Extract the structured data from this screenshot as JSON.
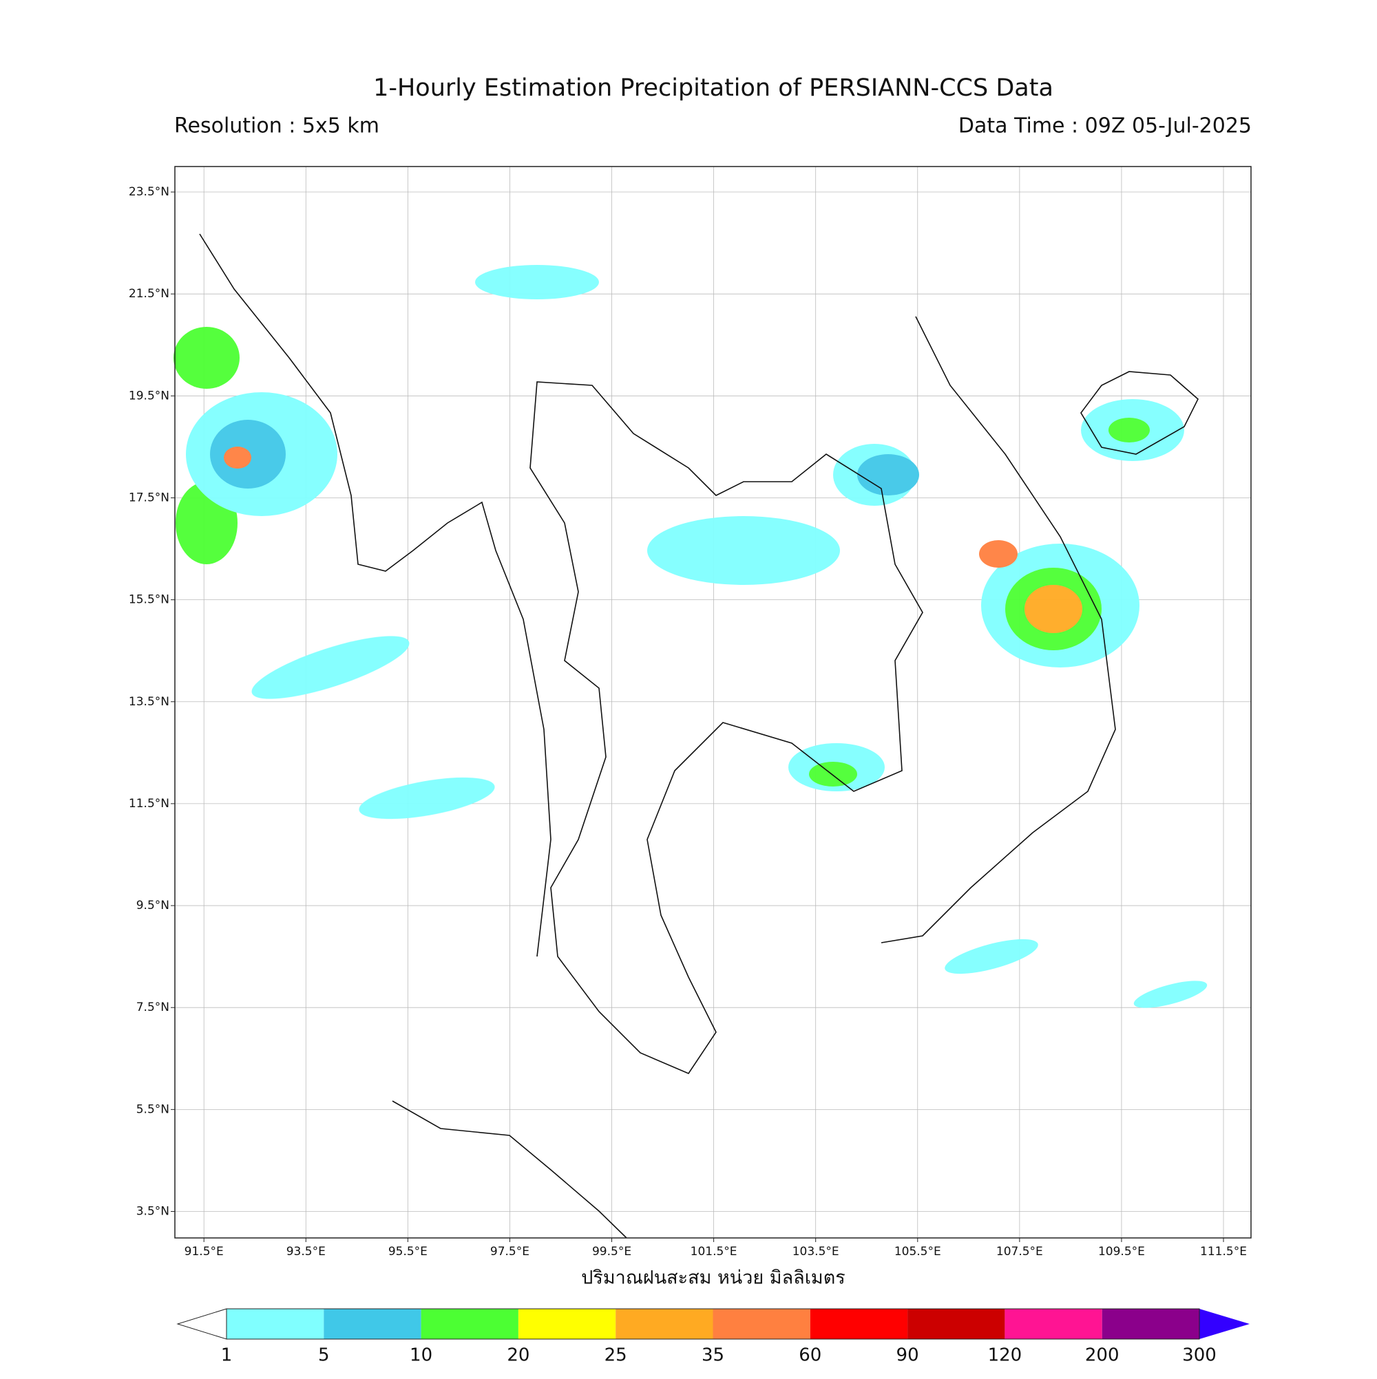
{
  "header": {
    "title": "1-Hourly Estimation Precipitation of PERSIANN-CCS Data",
    "resolution": "Resolution : 5x5 km",
    "data_time": "Data Time : 09Z 05-Jul-2025"
  },
  "map": {
    "xlim": [
      90.93,
      112.04
    ],
    "ylim": [
      2.98,
      24.0
    ],
    "grid": true,
    "xticks": [
      {
        "value": 91.5,
        "label": "91.5°E"
      },
      {
        "value": 93.5,
        "label": "93.5°E"
      },
      {
        "value": 95.5,
        "label": "95.5°E"
      },
      {
        "value": 97.5,
        "label": "97.5°E"
      },
      {
        "value": 99.5,
        "label": "99.5°E"
      },
      {
        "value": 101.5,
        "label": "101.5°E"
      },
      {
        "value": 103.5,
        "label": "103.5°E"
      },
      {
        "value": 105.5,
        "label": "105.5°E"
      },
      {
        "value": 107.5,
        "label": "107.5°E"
      },
      {
        "value": 109.5,
        "label": "109.5°E"
      },
      {
        "value": 111.5,
        "label": "111.5°E"
      }
    ],
    "yticks": [
      {
        "value": 3.5,
        "label": "3.5°N"
      },
      {
        "value": 5.5,
        "label": "5.5°N"
      },
      {
        "value": 7.5,
        "label": "7.5°N"
      },
      {
        "value": 9.5,
        "label": "9.5°N"
      },
      {
        "value": 11.5,
        "label": "11.5°N"
      },
      {
        "value": 13.5,
        "label": "13.5°N"
      },
      {
        "value": 15.5,
        "label": "15.5°N"
      },
      {
        "value": 17.5,
        "label": "17.5°N"
      },
      {
        "value": 19.5,
        "label": "19.5°N"
      },
      {
        "value": 21.5,
        "label": "21.5°N"
      },
      {
        "value": 23.5,
        "label": "23.5°N"
      }
    ],
    "xlabel": "ปริมาณฝนสะสม หน่วย มิลลิเมตร"
  },
  "colorbar": {
    "levels": [
      1,
      5,
      10,
      20,
      25,
      35,
      60,
      90,
      120,
      200,
      300
    ],
    "colors": [
      "#80ffff",
      "#40c8e8",
      "#4cff33",
      "#ffff00",
      "#ffaa22",
      "#ff8040",
      "#ff0000",
      "#cc0000",
      "#ff1493",
      "#8b008b"
    ],
    "under_color": "#ffffff",
    "over_color": "#3300ff"
  }
}
